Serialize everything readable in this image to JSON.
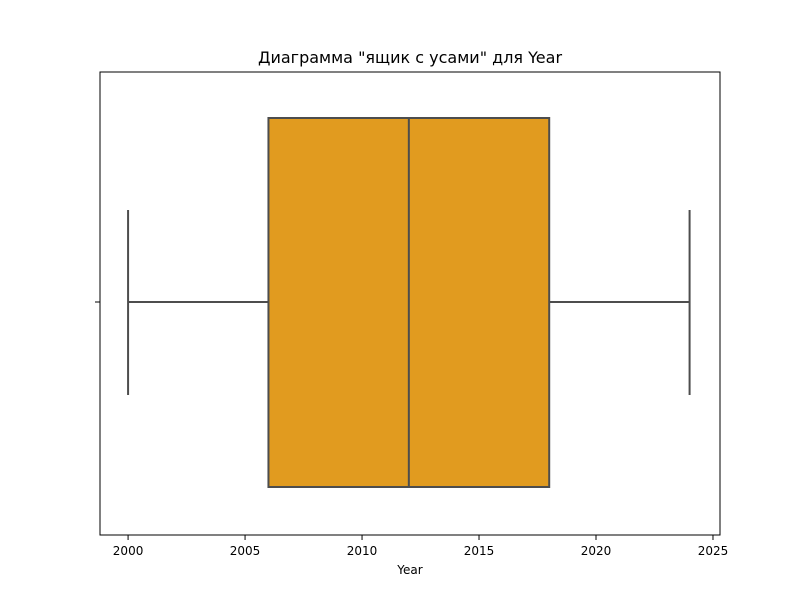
{
  "chart_data": {
    "type": "boxplot",
    "title": "Диаграмма \"ящик с усами\" для Year",
    "xlabel": "Year",
    "ylabel": "",
    "xlim": [
      1998.8,
      2025.3
    ],
    "xticks": [
      2000,
      2005,
      2010,
      2015,
      2020,
      2025
    ],
    "orientation": "horizontal",
    "grid": false,
    "box": {
      "whisker_low": 2000,
      "q1": 2006,
      "median": 2012,
      "q3": 2018,
      "whisker_high": 2024,
      "fill_color": "#e19b1f",
      "line_color": "#4d4d4d"
    }
  }
}
